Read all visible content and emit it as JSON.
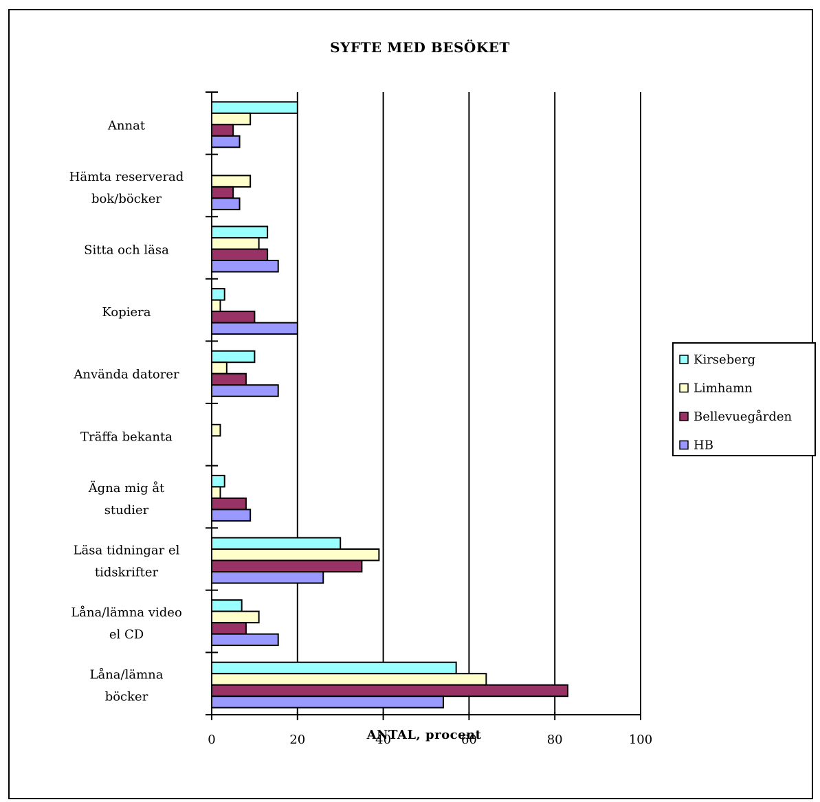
{
  "chart_data": {
    "type": "bar",
    "orientation": "horizontal",
    "title": "SYFTE MED BESÖKET",
    "xlabel": "ANTAL, procent",
    "ylabel": "",
    "xlim": [
      0,
      100
    ],
    "xticks": [
      0,
      20,
      40,
      60,
      80,
      100
    ],
    "grid": true,
    "legend_position": "right",
    "categories": [
      [
        "Annat"
      ],
      [
        "Hämta reserverad",
        "bok/böcker"
      ],
      [
        "Sitta och läsa"
      ],
      [
        "Kopiera"
      ],
      [
        "Använda datorer"
      ],
      [
        "Träffa bekanta"
      ],
      [
        "Ägna mig åt",
        "studier"
      ],
      [
        "Läsa tidningar el",
        "tidskrifter"
      ],
      [
        "Låna/lämna video",
        "el CD"
      ],
      [
        "Låna/lämna",
        "böcker"
      ]
    ],
    "series": [
      {
        "name": "Kirseberg",
        "color": "#99ffff",
        "values": [
          20,
          0,
          13,
          3,
          10,
          0,
          3,
          30,
          7,
          57
        ]
      },
      {
        "name": "Limhamn",
        "color": "#ffffcc",
        "values": [
          9,
          9,
          11,
          2,
          3.5,
          2,
          2,
          39,
          11,
          64
        ]
      },
      {
        "name": "Bellevuegården",
        "color": "#993366",
        "values": [
          5,
          5,
          13,
          10,
          8,
          0,
          8,
          35,
          8,
          83
        ]
      },
      {
        "name": "HB",
        "color": "#9999ff",
        "values": [
          6.5,
          6.5,
          15.5,
          20,
          15.5,
          0,
          9,
          26,
          15.5,
          54
        ]
      }
    ]
  }
}
